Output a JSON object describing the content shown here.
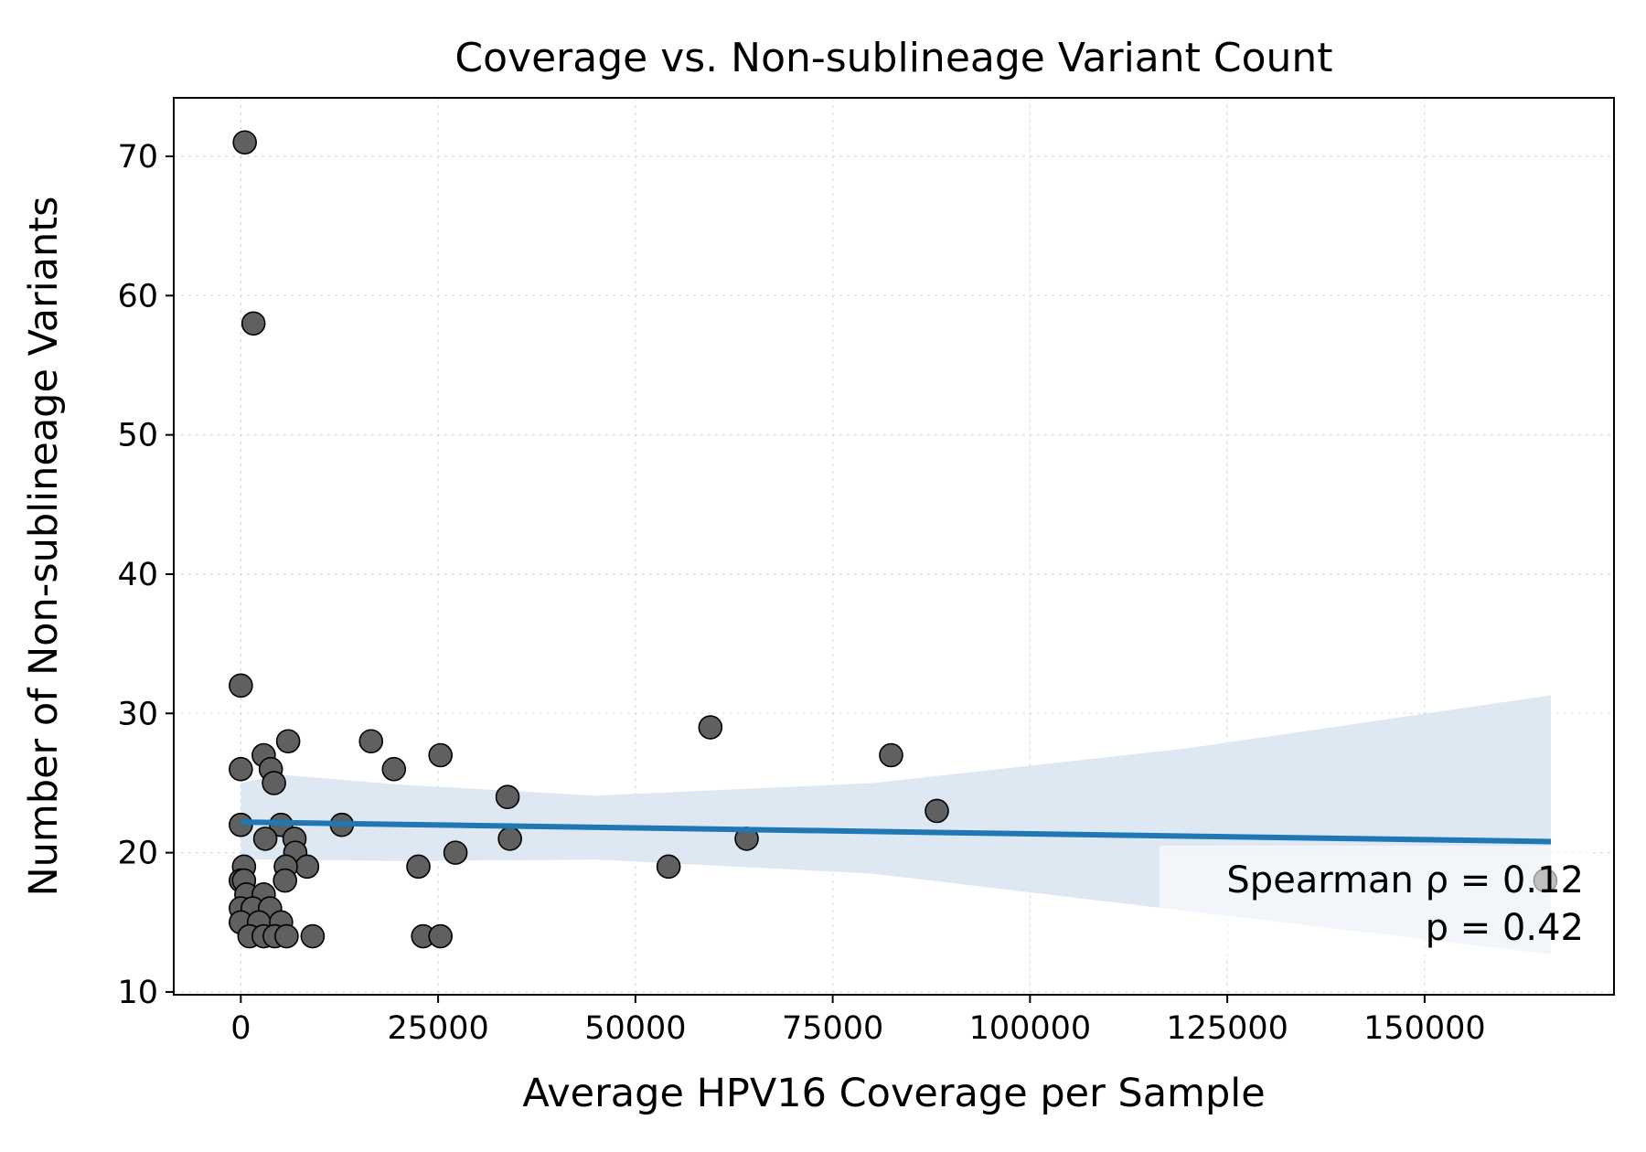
{
  "chart_data": {
    "type": "scatter",
    "title": "Coverage vs. Non-sublineage Variant Count",
    "xlabel": "Average HPV16 Coverage per Sample",
    "ylabel": "Number of Non-sublineage Variants",
    "xlim": [
      -8500,
      174000
    ],
    "ylim": [
      9.8,
      74.2
    ],
    "x_ticks": [
      0,
      25000,
      50000,
      75000,
      100000,
      125000,
      150000
    ],
    "y_ticks": [
      10,
      20,
      30,
      40,
      50,
      60,
      70
    ],
    "grid": true,
    "colors": {
      "points": "#606060",
      "point_edge": "#000000",
      "fit_line": "#1f77b4",
      "confidence_band": "#dce7f2"
    },
    "points": [
      {
        "x": 500,
        "y": 71
      },
      {
        "x": 1600,
        "y": 58
      },
      {
        "x": 0,
        "y": 32
      },
      {
        "x": 0,
        "y": 26
      },
      {
        "x": 2900,
        "y": 27
      },
      {
        "x": 3800,
        "y": 26
      },
      {
        "x": 4200,
        "y": 25
      },
      {
        "x": 6000,
        "y": 28
      },
      {
        "x": 0,
        "y": 22
      },
      {
        "x": 5100,
        "y": 22
      },
      {
        "x": 3100,
        "y": 21
      },
      {
        "x": 6800,
        "y": 21
      },
      {
        "x": 6900,
        "y": 20
      },
      {
        "x": 8400,
        "y": 19
      },
      {
        "x": 5700,
        "y": 19
      },
      {
        "x": 5600,
        "y": 18
      },
      {
        "x": 400,
        "y": 19
      },
      {
        "x": 0,
        "y": 18
      },
      {
        "x": 400,
        "y": 18
      },
      {
        "x": 700,
        "y": 17
      },
      {
        "x": 2900,
        "y": 17
      },
      {
        "x": 0,
        "y": 16
      },
      {
        "x": 1500,
        "y": 16
      },
      {
        "x": 3700,
        "y": 16
      },
      {
        "x": 0,
        "y": 15
      },
      {
        "x": 2300,
        "y": 15
      },
      {
        "x": 5100,
        "y": 15
      },
      {
        "x": 1100,
        "y": 14
      },
      {
        "x": 2900,
        "y": 14
      },
      {
        "x": 4300,
        "y": 14
      },
      {
        "x": 5800,
        "y": 14
      },
      {
        "x": 9100,
        "y": 14
      },
      {
        "x": 12800,
        "y": 22
      },
      {
        "x": 16500,
        "y": 28
      },
      {
        "x": 19400,
        "y": 26
      },
      {
        "x": 22500,
        "y": 19
      },
      {
        "x": 25300,
        "y": 27
      },
      {
        "x": 27200,
        "y": 20
      },
      {
        "x": 23100,
        "y": 14
      },
      {
        "x": 25300,
        "y": 14
      },
      {
        "x": 33800,
        "y": 24
      },
      {
        "x": 34100,
        "y": 21
      },
      {
        "x": 54200,
        "y": 19
      },
      {
        "x": 59500,
        "y": 29
      },
      {
        "x": 64100,
        "y": 21
      },
      {
        "x": 82400,
        "y": 27
      },
      {
        "x": 88200,
        "y": 23
      },
      {
        "x": 165300,
        "y": 18
      }
    ],
    "fit_line": {
      "x": [
        0,
        166000
      ],
      "y": [
        22.2,
        20.8
      ]
    },
    "confidence_band": {
      "x": [
        0,
        5000,
        20000,
        45000,
        80000,
        120000,
        166000
      ],
      "upper": [
        25,
        25.6,
        24.9,
        24.1,
        25.0,
        27.5,
        31.3
      ],
      "lower": [
        19.5,
        19.5,
        19.4,
        19.5,
        18.5,
        15.8,
        12.7
      ]
    },
    "annotation": {
      "line1": "Spearman ρ = 0.12",
      "line2": "p = 0.42"
    }
  }
}
